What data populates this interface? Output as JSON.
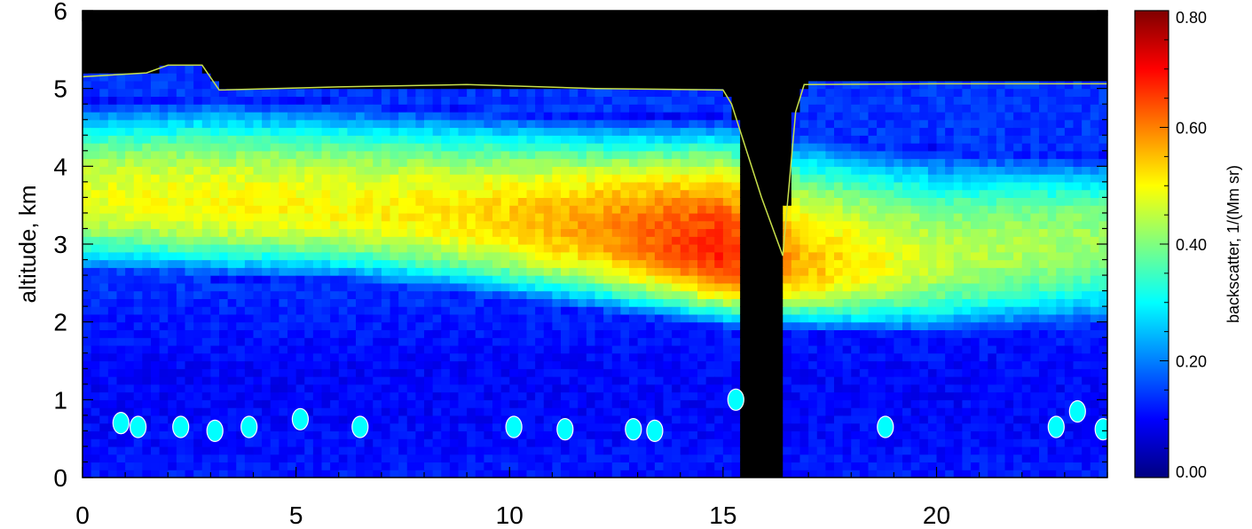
{
  "chart_data": {
    "type": "heatmap",
    "title": "",
    "xlabel": "",
    "ylabel": "altitude, km",
    "xlim": [
      0,
      24
    ],
    "ylim": [
      0,
      6
    ],
    "x_ticks": [
      0,
      5,
      10,
      15,
      20
    ],
    "x_tick_labels": [
      "0",
      "5",
      "10",
      "15",
      "20"
    ],
    "y_ticks": [
      0,
      1,
      2,
      3,
      4,
      5,
      6
    ],
    "y_tick_labels": [
      "0",
      "1",
      "2",
      "3",
      "4",
      "5",
      "6"
    ],
    "colorbar": {
      "label": "backscatter, 1/(Mm sr)",
      "range": [
        0.0,
        0.8
      ],
      "ticks": [
        0.0,
        0.2,
        0.4,
        0.6,
        0.8
      ],
      "tick_labels": [
        "0.00",
        "0.20",
        "0.40",
        "0.60",
        "0.80"
      ],
      "colormap": "jet"
    },
    "colors": {
      "no_data": "#000000",
      "boundary_line": "#c8e04a",
      "cloud_contour": "#ffffff"
    },
    "data_gap": {
      "x_start": 15.5,
      "x_end": 16.4
    },
    "aerosol_layer": [
      {
        "x": 0,
        "bottom": 2.9,
        "top": 4.6,
        "peak_alt": 3.6,
        "peak_value": 0.48
      },
      {
        "x": 3,
        "bottom": 2.85,
        "top": 4.65,
        "peak_alt": 3.5,
        "peak_value": 0.5
      },
      {
        "x": 6,
        "bottom": 2.8,
        "top": 4.6,
        "peak_alt": 3.45,
        "peak_value": 0.5
      },
      {
        "x": 9,
        "bottom": 2.6,
        "top": 4.5,
        "peak_alt": 3.35,
        "peak_value": 0.52
      },
      {
        "x": 12,
        "bottom": 2.4,
        "top": 4.4,
        "peak_alt": 3.2,
        "peak_value": 0.58
      },
      {
        "x": 15,
        "bottom": 2.2,
        "top": 4.4,
        "peak_alt": 2.9,
        "peak_value": 0.68
      },
      {
        "x": 17,
        "bottom": 2.15,
        "top": 4.2,
        "peak_alt": 2.7,
        "peak_value": 0.55
      },
      {
        "x": 20,
        "bottom": 2.1,
        "top": 4.0,
        "peak_alt": 2.8,
        "peak_value": 0.45
      },
      {
        "x": 24,
        "bottom": 2.2,
        "top": 3.9,
        "peak_alt": 3.1,
        "peak_value": 0.42
      }
    ],
    "top_boundary": [
      [
        0,
        5.15
      ],
      [
        1.5,
        5.2
      ],
      [
        2,
        5.3
      ],
      [
        2.8,
        5.3
      ],
      [
        3.2,
        4.98
      ],
      [
        6,
        5.02
      ],
      [
        9,
        5.05
      ],
      [
        12,
        5.0
      ],
      [
        15,
        4.98
      ],
      [
        15.2,
        4.8
      ],
      [
        15.9,
        3.6
      ],
      [
        16.4,
        2.85
      ],
      [
        16.7,
        4.7
      ],
      [
        16.9,
        5.05
      ],
      [
        20,
        5.06
      ],
      [
        24,
        5.06
      ]
    ],
    "cloud_patches": [
      [
        0.9,
        0.7
      ],
      [
        1.3,
        0.65
      ],
      [
        2.3,
        0.65
      ],
      [
        3.1,
        0.6
      ],
      [
        3.9,
        0.65
      ],
      [
        5.1,
        0.75
      ],
      [
        6.5,
        0.65
      ],
      [
        10.1,
        0.65
      ],
      [
        11.3,
        0.62
      ],
      [
        12.9,
        0.62
      ],
      [
        13.4,
        0.6
      ],
      [
        15.3,
        1.0
      ],
      [
        18.8,
        0.65
      ],
      [
        22.8,
        0.65
      ],
      [
        23.3,
        0.85
      ],
      [
        23.9,
        0.62
      ]
    ]
  }
}
